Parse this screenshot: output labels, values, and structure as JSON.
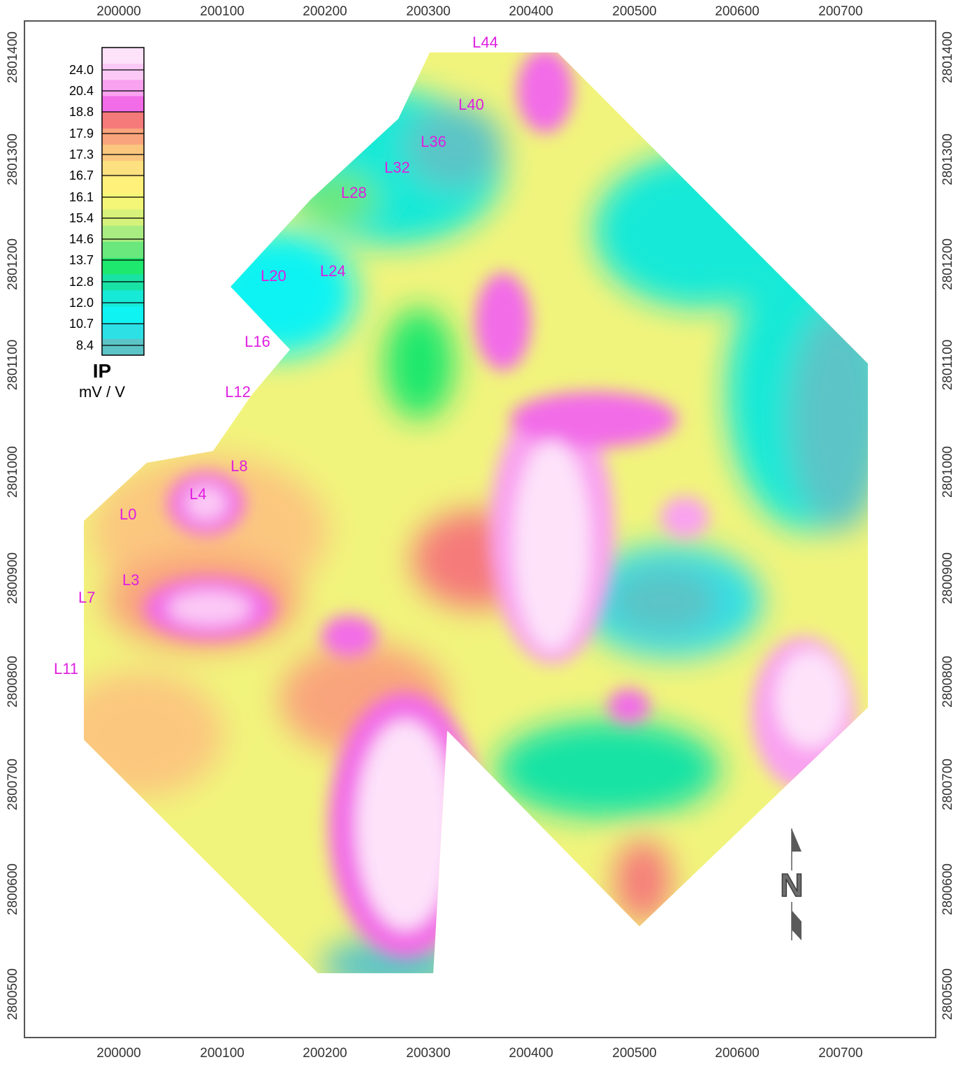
{
  "map": {
    "x_axis_labels": [
      "200000",
      "200100",
      "200200",
      "200300",
      "200400",
      "200500",
      "200600",
      "200700"
    ],
    "y_axis_labels": [
      "2800500",
      "2800600",
      "2800700",
      "2800800",
      "2800900",
      "2801000",
      "2801100",
      "2801200",
      "2801300",
      "2801400"
    ],
    "line_labels": [
      "L44",
      "L40",
      "L36",
      "L32",
      "L28",
      "L24",
      "L20",
      "L16",
      "L12",
      "L8",
      "L4",
      "L0",
      "L3",
      "L7",
      "L11"
    ],
    "north_arrow": {
      "label": "N",
      "icon": "north-arrow-icon"
    }
  },
  "legend": {
    "title": "IP",
    "unit": "mV / V",
    "values": [
      "24.0",
      "20.4",
      "18.8",
      "17.9",
      "17.3",
      "16.7",
      "16.1",
      "15.4",
      "14.6",
      "13.7",
      "12.8",
      "12.0",
      "10.7",
      "8.4"
    ],
    "colors": [
      "#fde2fa",
      "#fbc9f5",
      "#f9a2f0",
      "#f26ce8",
      "#f57a7a",
      "#f9a47c",
      "#fbc77f",
      "#fde07f",
      "#fff17a",
      "#f4f678",
      "#d6f27a",
      "#a9ec82",
      "#6ae87d",
      "#1ee86d",
      "#18e3a4",
      "#17e9d7",
      "#0ff3f3",
      "#2ce0e6",
      "#5cc4c6"
    ]
  }
}
